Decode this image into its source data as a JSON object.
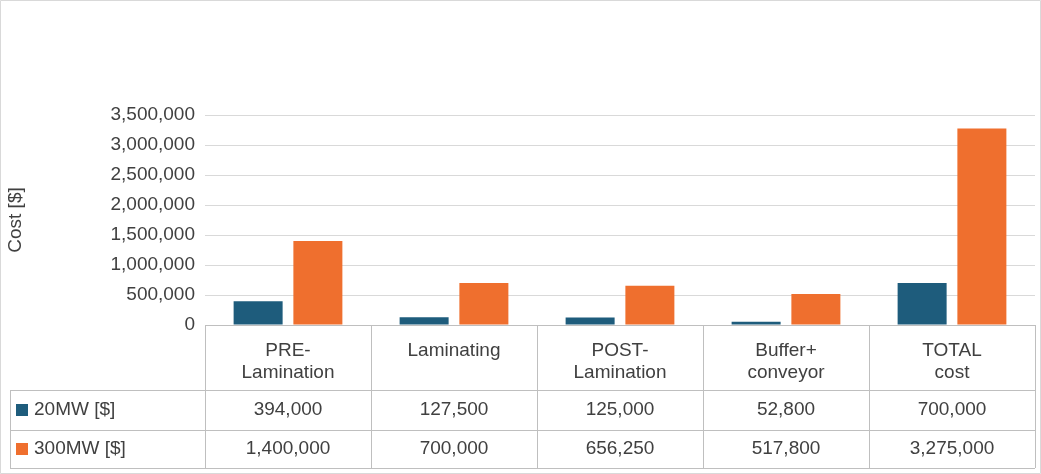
{
  "chart_data": {
    "type": "bar",
    "ylabel": "Cost [$]",
    "categories": [
      "PRE-Lamination",
      "Laminating",
      "POST-Lamination",
      "Buffer+ conveyor",
      "TOTAL cost"
    ],
    "series": [
      {
        "name": "20MW [$]",
        "color": "#1e5c7c",
        "values": [
          394000,
          127500,
          125000,
          52800,
          700000
        ],
        "value_labels": [
          "394,000",
          "127,500",
          "125,000",
          "52,800",
          "700,000"
        ]
      },
      {
        "name": "300MW [$]",
        "color": "#ef6f2e",
        "values": [
          1400000,
          700000,
          656250,
          517800,
          3275000
        ],
        "value_labels": [
          "1,400,000",
          "700,000",
          "656,250",
          "517,800",
          "3,275,000"
        ]
      }
    ],
    "ylim": [
      0,
      3500000
    ],
    "yticks": [
      0,
      {
        "value": 500000,
        "label": "500,000"
      },
      {
        "value": 1000000,
        "label": "1,000,000"
      },
      {
        "value": 1500000,
        "label": "1,500,000"
      },
      {
        "value": 2000000,
        "label": "2,000,000"
      },
      {
        "value": 2500000,
        "label": "2,500,000"
      },
      {
        "value": 3000000,
        "label": "3,000,000"
      },
      {
        "value": 3500000,
        "label": "3,500,000"
      }
    ],
    "grid": "y",
    "legend": "bottom"
  }
}
